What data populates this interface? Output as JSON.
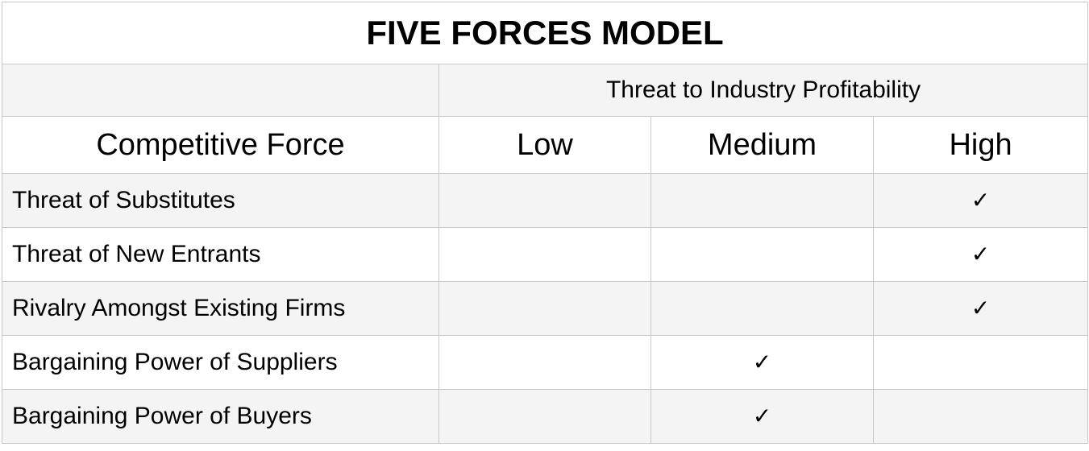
{
  "title": "FIVE FORCES MODEL",
  "group_header": "Threat to Industry Profitability",
  "columns": {
    "force": "Competitive Force",
    "levels": [
      "Low",
      "Medium",
      "High"
    ]
  },
  "check_glyph": "✓",
  "rows": [
    {
      "force": "Threat of Substitutes",
      "level": "High"
    },
    {
      "force": "Threat of New Entrants",
      "level": "High"
    },
    {
      "force": "Rivalry Amongst Existing Firms",
      "level": "High"
    },
    {
      "force": "Bargaining Power of Suppliers",
      "level": "Medium"
    },
    {
      "force": "Bargaining Power of Buyers",
      "level": "Medium"
    }
  ]
}
